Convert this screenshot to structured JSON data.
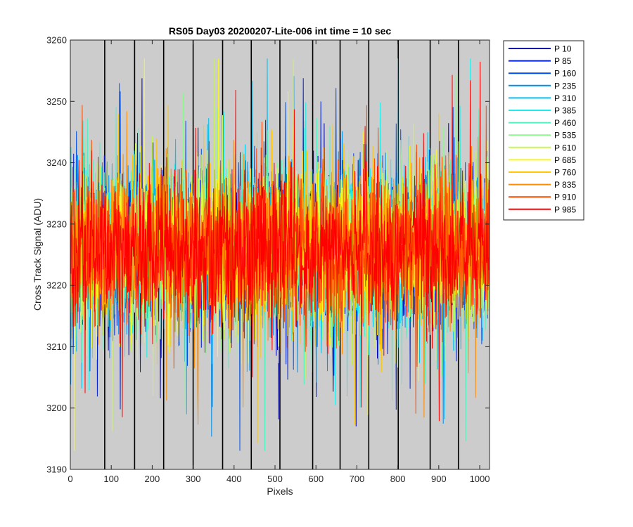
{
  "chart_data": {
    "type": "line",
    "title": "RS05 Day03 20200207-Lite-006 int time = 10 sec",
    "xlabel": "Pixels",
    "ylabel": "Cross Track Signal (ADU)",
    "xlim": [
      0,
      1024
    ],
    "ylim": [
      3190,
      3260
    ],
    "xticks": [
      0,
      100,
      200,
      300,
      400,
      500,
      600,
      700,
      800,
      900,
      1000
    ],
    "yticks": [
      3190,
      3200,
      3210,
      3220,
      3230,
      3240,
      3250,
      3260
    ],
    "grid": false,
    "background_color": "#cccccc",
    "legend_position": "outside-top-right",
    "vertical_marker_lines": {
      "color": "#000000",
      "x": [
        84,
        157,
        228,
        300,
        372,
        442,
        512,
        592,
        659,
        729,
        801,
        879,
        948
      ]
    },
    "signal": {
      "baseline": 3226,
      "points_per_series": 1024,
      "spread_stdev": 6,
      "min_observed": 3193,
      "max_observed": 3257
    },
    "series": [
      {
        "name": "P 10",
        "color": "#0000b3"
      },
      {
        "name": "P 85",
        "color": "#0020d6"
      },
      {
        "name": "P 160",
        "color": "#0050e8"
      },
      {
        "name": "P 235",
        "color": "#0090ef"
      },
      {
        "name": "P 310",
        "color": "#00c0f0"
      },
      {
        "name": "P 385",
        "color": "#20ecec"
      },
      {
        "name": "P 460",
        "color": "#50f2c0"
      },
      {
        "name": "P 535",
        "color": "#90f890"
      },
      {
        "name": "P 610",
        "color": "#c8f850"
      },
      {
        "name": "P 685",
        "color": "#f8f820"
      },
      {
        "name": "P 760",
        "color": "#ffc800"
      },
      {
        "name": "P 835",
        "color": "#ff8c00"
      },
      {
        "name": "P 910",
        "color": "#ff4a00"
      },
      {
        "name": "P 985",
        "color": "#ff0000"
      }
    ]
  }
}
